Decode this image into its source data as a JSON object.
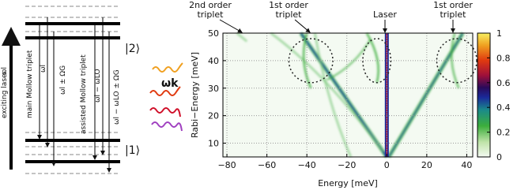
{
  "diagram": {
    "level_top": "|2⟩",
    "level_bottom": "|1⟩",
    "exciting_laser": "exciting laser",
    "omega_l_arrow": "ωl",
    "main_triplet": "main Mollow triplet",
    "main_omega": "ωl",
    "main_omega_pm": "ωl ± ΩG",
    "assisted_triplet": "assisted Mollow triplet",
    "assisted_omega": "ωl − ωLO",
    "assisted_omega_pm": "ωl − ωLO ± ΩG",
    "photon": "ωk"
  },
  "chart_data": {
    "type": "heatmap",
    "xlabel": "Energy [meV]",
    "ylabel": "Rabi−Energy [meV]",
    "xlim": [
      -82,
      43
    ],
    "xticks": [
      {
        "value": -80,
        "label": "−80"
      },
      {
        "value": -60,
        "label": "−60"
      },
      {
        "value": -40,
        "label": "−40"
      },
      {
        "value": -20,
        "label": "−20"
      },
      0,
      20,
      40
    ],
    "ylim": [
      5,
      50
    ],
    "yticks": [
      10,
      20,
      30,
      40,
      50
    ],
    "grid": true,
    "annotations": [
      [
        "2nd order",
        "triplet"
      ],
      [
        "1st order",
        "triplet"
      ],
      [
        "Laser"
      ],
      [
        "1st order",
        "triplet"
      ]
    ],
    "colorbar": {
      "lim": [
        0,
        1
      ],
      "ticks": [
        0,
        0.2,
        0.4,
        0.6,
        0.8,
        1
      ]
    }
  }
}
